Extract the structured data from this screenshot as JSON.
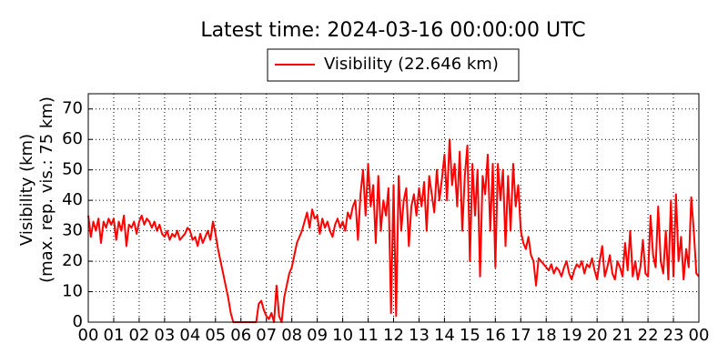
{
  "chart_data": {
    "type": "line",
    "title": "Latest time: 2024-03-16 00:00:00 UTC",
    "ylabel": [
      "Visibility (km)",
      "(max. rep. vis.: 75 km)"
    ],
    "legend_position": "top-center",
    "grid": true,
    "xlim": [
      0,
      24
    ],
    "ylim": [
      0,
      75
    ],
    "yticks": [
      0,
      10,
      20,
      30,
      40,
      50,
      60,
      70
    ],
    "xticks": [
      {
        "value": 0,
        "label": "00"
      },
      {
        "value": 1,
        "label": "01"
      },
      {
        "value": 2,
        "label": "02"
      },
      {
        "value": 3,
        "label": "03"
      },
      {
        "value": 4,
        "label": "04"
      },
      {
        "value": 5,
        "label": "05"
      },
      {
        "value": 6,
        "label": "06"
      },
      {
        "value": 7,
        "label": "07"
      },
      {
        "value": 8,
        "label": "08"
      },
      {
        "value": 9,
        "label": "09"
      },
      {
        "value": 10,
        "label": "10"
      },
      {
        "value": 11,
        "label": "11"
      },
      {
        "value": 12,
        "label": "12"
      },
      {
        "value": 13,
        "label": "13"
      },
      {
        "value": 14,
        "label": "14"
      },
      {
        "value": 15,
        "label": "15"
      },
      {
        "value": 16,
        "label": "16"
      },
      {
        "value": 17,
        "label": "17"
      },
      {
        "value": 18,
        "label": "18"
      },
      {
        "value": 19,
        "label": "19"
      },
      {
        "value": 20,
        "label": "20"
      },
      {
        "value": 21,
        "label": "21"
      },
      {
        "value": 22,
        "label": "22"
      },
      {
        "value": 23,
        "label": "23"
      },
      {
        "value": 24,
        "label": "00"
      }
    ],
    "x": [
      0,
      0.1,
      0.2,
      0.3,
      0.4,
      0.5,
      0.6,
      0.7,
      0.8,
      0.9,
      1,
      1.1,
      1.2,
      1.3,
      1.4,
      1.5,
      1.6,
      1.7,
      1.8,
      1.9,
      2,
      2.1,
      2.2,
      2.3,
      2.4,
      2.5,
      2.6,
      2.7,
      2.8,
      2.9,
      3,
      3.1,
      3.2,
      3.3,
      3.4,
      3.5,
      3.6,
      3.7,
      3.8,
      3.9,
      4,
      4.1,
      4.2,
      4.3,
      4.4,
      4.5,
      4.6,
      4.7,
      4.8,
      4.9,
      5,
      5.1,
      5.2,
      5.3,
      5.4,
      5.5,
      5.6,
      5.7,
      5.8,
      5.9,
      6,
      6.1,
      6.2,
      6.3,
      6.4,
      6.5,
      6.6,
      6.7,
      6.8,
      6.9,
      7,
      7.1,
      7.2,
      7.3,
      7.4,
      7.5,
      7.6,
      7.7,
      7.8,
      7.9,
      8,
      8.1,
      8.2,
      8.3,
      8.4,
      8.5,
      8.6,
      8.7,
      8.8,
      8.9,
      9,
      9.1,
      9.2,
      9.3,
      9.4,
      9.5,
      9.6,
      9.7,
      9.8,
      9.9,
      10,
      10.1,
      10.2,
      10.3,
      10.4,
      10.5,
      10.6,
      10.7,
      10.8,
      10.9,
      11,
      11.1,
      11.2,
      11.3,
      11.4,
      11.5,
      11.6,
      11.7,
      11.8,
      11.9,
      12,
      12.1,
      12.2,
      12.3,
      12.4,
      12.5,
      12.6,
      12.7,
      12.8,
      12.9,
      13,
      13.1,
      13.2,
      13.3,
      13.4,
      13.5,
      13.6,
      13.7,
      13.8,
      13.9,
      14,
      14.1,
      14.2,
      14.3,
      14.4,
      14.5,
      14.6,
      14.7,
      14.8,
      14.9,
      15,
      15.1,
      15.2,
      15.3,
      15.4,
      15.5,
      15.6,
      15.7,
      15.8,
      15.9,
      16,
      16.1,
      16.2,
      16.3,
      16.4,
      16.5,
      16.6,
      16.7,
      16.8,
      16.9,
      17,
      17.1,
      17.2,
      17.3,
      17.4,
      17.5,
      17.6,
      17.7,
      17.8,
      17.9,
      18,
      18.1,
      18.2,
      18.3,
      18.4,
      18.5,
      18.6,
      18.7,
      18.8,
      18.9,
      19,
      19.1,
      19.2,
      19.3,
      19.4,
      19.5,
      19.6,
      19.7,
      19.8,
      19.9,
      20,
      20.1,
      20.2,
      20.3,
      20.4,
      20.5,
      20.6,
      20.7,
      20.8,
      20.9,
      21,
      21.1,
      21.2,
      21.3,
      21.4,
      21.5,
      21.6,
      21.7,
      21.8,
      21.9,
      22,
      22.1,
      22.2,
      22.3,
      22.4,
      22.5,
      22.6,
      22.7,
      22.8,
      22.9,
      23,
      23.1,
      23.2,
      23.3,
      23.4,
      23.5,
      23.6,
      23.7,
      23.8,
      23.9,
      24
    ],
    "series": [
      {
        "name": "Visibility (22.646 km)",
        "color": "#ff0000",
        "values": [
          35,
          28,
          33,
          30,
          34,
          26,
          33,
          31,
          34,
          32,
          34,
          27,
          33,
          30,
          35,
          25,
          32,
          31,
          33,
          29,
          33,
          35,
          32,
          34,
          33,
          31,
          33,
          30,
          32,
          29,
          28,
          30,
          27,
          29,
          28,
          30,
          27,
          28,
          29,
          31,
          30,
          27,
          28,
          25,
          29,
          26,
          28,
          30,
          27,
          33,
          29,
          24,
          20,
          16,
          12,
          8,
          3,
          0,
          0,
          0,
          0,
          0,
          0,
          0,
          0,
          0,
          0,
          6,
          7,
          4,
          2,
          1,
          3,
          0,
          12,
          2,
          0,
          8,
          12,
          16,
          18,
          22,
          26,
          28,
          30,
          33,
          36,
          31,
          37,
          34,
          35,
          29,
          34,
          31,
          33,
          30,
          28,
          32,
          34,
          31,
          33,
          30,
          36,
          34,
          38,
          40,
          27,
          42,
          50,
          35,
          52,
          38,
          45,
          26,
          48,
          30,
          40,
          35,
          44,
          3,
          45,
          2,
          48,
          30,
          40,
          44,
          25,
          38,
          42,
          35,
          44,
          38,
          46,
          30,
          48,
          42,
          36,
          50,
          40,
          47,
          55,
          40,
          60,
          45,
          52,
          38,
          56,
          30,
          48,
          58,
          20,
          52,
          35,
          50,
          15,
          48,
          42,
          55,
          30,
          52,
          18,
          52,
          40,
          50,
          25,
          48,
          30,
          52,
          38,
          45,
          30,
          26,
          24,
          28,
          22,
          20,
          12,
          21,
          20,
          19,
          18,
          17,
          19,
          16,
          18,
          17,
          15,
          18,
          20,
          16,
          14,
          17,
          19,
          18,
          20,
          16,
          19,
          18,
          21,
          17,
          14,
          20,
          25,
          15,
          18,
          22,
          16,
          14,
          20,
          18,
          15,
          26,
          17,
          30,
          15,
          20,
          14,
          18,
          27,
          16,
          15,
          35,
          22,
          18,
          38,
          20,
          16,
          30,
          14,
          40,
          15,
          42,
          20,
          28,
          14,
          24,
          18,
          41,
          30,
          16,
          15
        ]
      }
    ]
  }
}
